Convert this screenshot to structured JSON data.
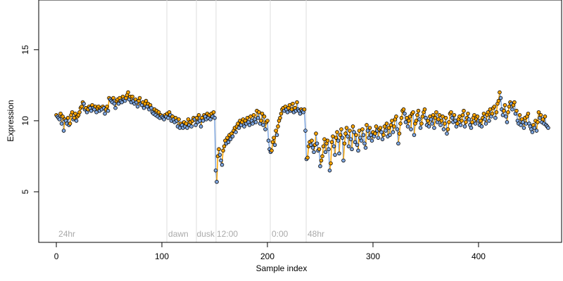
{
  "chart_data": {
    "type": "scatter-line",
    "x_label": "Sample index",
    "y_label": "Expression",
    "xlim": [
      -16.7,
      478.7
    ],
    "ylim": [
      1.44,
      18.5
    ],
    "xticks": [
      0,
      100,
      200,
      300,
      400
    ],
    "yticks": [
      5,
      10,
      15
    ],
    "up_color": "#ffa500",
    "down_color": "#7fa7e0",
    "vlines": [
      104.7,
      132.7,
      151.3,
      202.7,
      236.7
    ],
    "annotations": [
      {
        "label": "24hr",
        "x": 2
      },
      {
        "label": "dawn",
        "x": 106
      },
      {
        "label": "dusk",
        "x": 133
      },
      {
        "label": "12:00",
        "x": 152
      },
      {
        "label": "0:00",
        "x": 204
      },
      {
        "label": "48hr",
        "x": 238
      }
    ],
    "values": [
      10.4,
      10.3,
      10.2,
      10.1,
      10.5,
      9.8,
      10.3,
      9.3,
      10.1,
      10.0,
      9.8,
      10.2,
      9.7,
      9.8,
      10.4,
      10.6,
      10.1,
      10.2,
      10.5,
      10.0,
      10.3,
      10.4,
      10.6,
      10.9,
      11.0,
      11.3,
      11.2,
      10.8,
      10.9,
      10.6,
      10.8,
      11.0,
      10.9,
      10.7,
      11.1,
      10.9,
      10.8,
      11.0,
      10.6,
      10.9,
      11.0,
      10.7,
      10.9,
      10.8,
      11.0,
      10.9,
      10.5,
      10.8,
      11.0,
      10.7,
      11.6,
      11.5,
      11.4,
      11.3,
      11.6,
      11.2,
      10.9,
      11.4,
      11.5,
      11.2,
      11.6,
      11.4,
      11.3,
      11.7,
      11.5,
      11.4,
      11.6,
      11.8,
      12.0,
      11.5,
      11.7,
      11.3,
      11.7,
      11.4,
      11.2,
      11.5,
      11.3,
      11.0,
      11.4,
      11.6,
      11.2,
      11.1,
      11.3,
      10.9,
      11.2,
      11.4,
      11.0,
      11.2,
      10.8,
      11.1,
      10.9,
      10.6,
      10.5,
      10.8,
      10.4,
      10.7,
      10.3,
      10.6,
      10.2,
      10.4,
      10.3,
      10.2,
      10.1,
      10.4,
      10.3,
      10.5,
      10.2,
      10.6,
      10.4,
      10.0,
      10.3,
      10.1,
      9.9,
      10.2,
      10.0,
      9.6,
      10.1,
      9.5,
      9.8,
      9.7,
      9.5,
      9.9,
      9.6,
      9.8,
      9.5,
      10.1,
      9.7,
      9.9,
      9.6,
      10.0,
      10.2,
      10.1,
      9.7,
      10.2,
      9.9,
      10.4,
      10.0,
      9.6,
      10.2,
      10.0,
      10.4,
      10.3,
      10.1,
      10.5,
      10.2,
      10.4,
      10.1,
      10.5,
      10.3,
      10.6,
      10.2,
      6.5,
      5.7,
      7.5,
      8.0,
      7.6,
      7.2,
      6.9,
      7.9,
      8.2,
      8.6,
      8.4,
      8.8,
      8.5,
      9.0,
      8.7,
      9.1,
      8.9,
      9.3,
      9.5,
      9.2,
      9.6,
      9.8,
      9.5,
      10.0,
      9.7,
      9.9,
      10.1,
      9.6,
      10.0,
      9.8,
      10.2,
      9.9,
      9.7,
      10.3,
      10.0,
      9.8,
      10.4,
      10.1,
      9.9,
      10.7,
      10.2,
      10.6,
      9.8,
      10.0,
      10.5,
      9.7,
      10.3,
      9.4,
      9.9,
      10.0,
      8.6,
      8.0,
      7.8,
      7.9,
      8.5,
      8.8,
      8.3,
      9.3,
      9.0,
      9.6,
      10.0,
      10.2,
      10.5,
      10.8,
      10.9,
      10.7,
      11.0,
      10.8,
      10.6,
      10.9,
      11.1,
      10.7,
      10.8,
      11.2,
      10.6,
      10.9,
      10.7,
      11.3,
      10.8,
      10.7,
      10.5,
      10.8,
      10.7,
      10.6,
      10.8,
      9.3,
      7.3,
      7.4,
      8.2,
      8.5,
      8.3,
      8.6,
      8.1,
      7.8,
      8.3,
      9.1,
      8.4,
      7.9,
      8.0,
      6.8,
      7.2,
      7.5,
      8.2,
      8.7,
      7.8,
      8.4,
      8.6,
      8.0,
      6.5,
      7.0,
      8.5,
      8.9,
      8.2,
      7.6,
      8.8,
      9.2,
      8.6,
      7.7,
      9.0,
      9.4,
      8.8,
      7.2,
      8.4,
      9.1,
      9.5,
      8.9,
      8.2,
      9.3,
      8.7,
      8.0,
      9.6,
      9.2,
      8.5,
      9.0,
      8.3,
      7.9,
      9.3,
      8.8,
      8.6,
      9.4,
      9.0,
      8.4,
      8.1,
      9.7,
      9.3,
      8.8,
      9.5,
      9.0,
      8.6,
      9.2,
      8.9,
      9.1,
      9.6,
      9.3,
      8.8,
      9.4,
      9.5,
      9.2,
      8.7,
      9.0,
      9.6,
      9.3,
      9.8,
      8.9,
      9.5,
      9.0,
      9.7,
      10.0,
      9.2,
      9.6,
      10.1,
      10.3,
      9.4,
      8.4,
      9.1,
      9.8,
      10.2,
      10.7,
      10.8,
      10.5,
      9.9,
      10.2,
      9.6,
      10.0,
      10.3,
      9.4,
      10.5,
      10.6,
      9.0,
      9.8,
      10.0,
      10.4,
      10.7,
      10.1,
      9.5,
      9.8,
      10.3,
      10.6,
      10.8,
      10.2,
      9.7,
      10.0,
      9.6,
      10.3,
      10.1,
      9.8,
      10.4,
      9.5,
      10.2,
      10.6,
      9.9,
      10.1,
      10.4,
      9.7,
      10.0,
      10.3,
      9.4,
      9.8,
      10.2,
      9.1,
      9.4,
      9.9,
      10.5,
      10.6,
      10.2,
      9.9,
      10.4,
      10.0,
      9.6,
      9.8,
      10.1,
      10.3,
      9.7,
      10.0,
      10.4,
      10.7,
      9.6,
      9.9,
      10.2,
      10.5,
      10.1,
      9.7,
      9.5,
      9.9,
      10.2,
      10.4,
      9.8,
      10.1,
      10.3,
      10.0,
      9.7,
      10.0,
      9.6,
      10.2,
      10.5,
      10.1,
      9.8,
      10.4,
      10.6,
      10.0,
      10.8,
      10.3,
      10.5,
      10.9,
      11.0,
      10.2,
      10.6,
      11.2,
      11.4,
      12.0,
      11.6,
      10.8,
      10.4,
      10.7,
      11.1,
      10.3,
      9.9,
      10.6,
      11.0,
      11.3,
      11.2,
      10.8,
      11.1,
      11.3,
      10.5,
      10.7,
      10.0,
      9.8,
      10.4,
      9.7,
      10.1,
      9.9,
      9.5,
      10.2,
      9.8,
      10.3,
      10.5,
      9.8,
      9.6,
      9.4,
      9.2,
      9.7,
      9.5,
      10.0,
      9.3,
      9.9,
      10.6,
      10.2,
      10.4,
      9.9,
      10.1,
      9.8,
      10.3,
      9.7,
      9.6,
      9.5
    ]
  }
}
